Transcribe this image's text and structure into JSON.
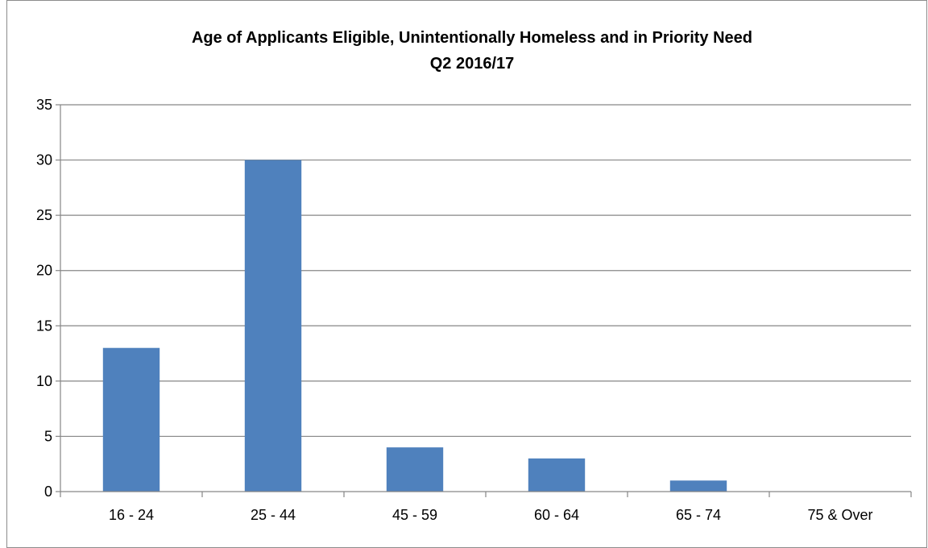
{
  "chart_data": {
    "type": "bar",
    "title": "Age of Applicants Eligible, Unintentionally Homeless and in Priority Need",
    "subtitle": "Q2 2016/17",
    "categories": [
      "16 - 24",
      "25 - 44",
      "45 - 59",
      "60 - 64",
      "65 - 74",
      "75 & Over"
    ],
    "values": [
      13,
      30,
      4,
      3,
      1,
      0
    ],
    "ylim": [
      0,
      35
    ],
    "yticks": [
      0,
      5,
      10,
      15,
      20,
      25,
      30,
      35
    ],
    "grid": true,
    "legend": "none",
    "bar_color": "#4F81BD",
    "grid_color": "#868686"
  }
}
